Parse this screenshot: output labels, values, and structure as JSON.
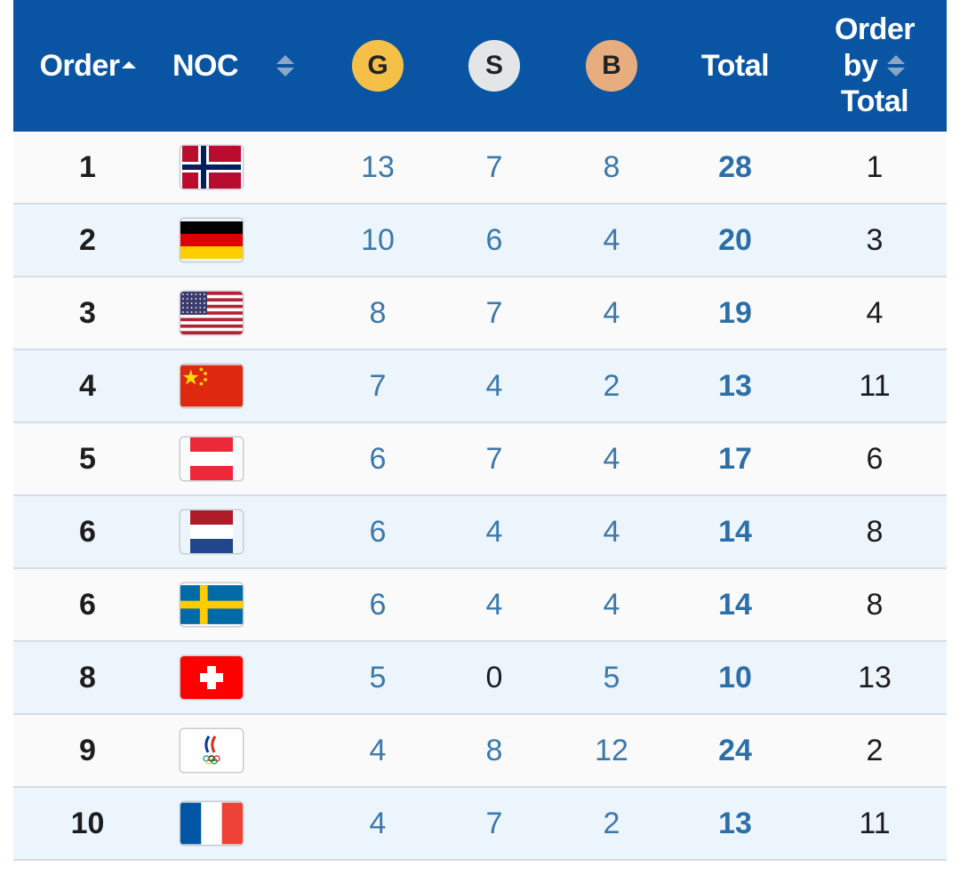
{
  "header": {
    "order": "Order",
    "noc": "NOC",
    "gold": "G",
    "silver": "S",
    "bronze": "B",
    "total": "Total",
    "order_by_total": [
      "Order",
      "by",
      "Total"
    ]
  },
  "colors": {
    "header_bg": "#0a55a3",
    "gold": "#f5c047",
    "silver": "#e4e5e7",
    "bronze": "#e8ad7f",
    "row_alt": "#edf5fc",
    "row_base": "#fafafa",
    "value_blue": "#3b79ac"
  },
  "rows": [
    {
      "order": "1",
      "flag": "norway-flag",
      "gold": "13",
      "silver": "7",
      "bronze": "8",
      "total": "28",
      "order_by_total": "1"
    },
    {
      "order": "2",
      "flag": "germany-flag",
      "gold": "10",
      "silver": "6",
      "bronze": "4",
      "total": "20",
      "order_by_total": "3"
    },
    {
      "order": "3",
      "flag": "usa-flag",
      "gold": "8",
      "silver": "7",
      "bronze": "4",
      "total": "19",
      "order_by_total": "4"
    },
    {
      "order": "4",
      "flag": "china-flag",
      "gold": "7",
      "silver": "4",
      "bronze": "2",
      "total": "13",
      "order_by_total": "11"
    },
    {
      "order": "5",
      "flag": "austria-flag",
      "gold": "6",
      "silver": "7",
      "bronze": "4",
      "total": "17",
      "order_by_total": "6"
    },
    {
      "order": "6",
      "flag": "netherlands-flag",
      "gold": "6",
      "silver": "4",
      "bronze": "4",
      "total": "14",
      "order_by_total": "8"
    },
    {
      "order": "6",
      "flag": "sweden-flag",
      "gold": "6",
      "silver": "4",
      "bronze": "4",
      "total": "14",
      "order_by_total": "8"
    },
    {
      "order": "8",
      "flag": "switzerland-flag",
      "gold": "5",
      "silver": "0",
      "bronze": "5",
      "total": "10",
      "order_by_total": "13"
    },
    {
      "order": "9",
      "flag": "roc-flag",
      "gold": "4",
      "silver": "8",
      "bronze": "12",
      "total": "24",
      "order_by_total": "2"
    },
    {
      "order": "10",
      "flag": "france-flag",
      "gold": "4",
      "silver": "7",
      "bronze": "2",
      "total": "13",
      "order_by_total": "11"
    }
  ]
}
